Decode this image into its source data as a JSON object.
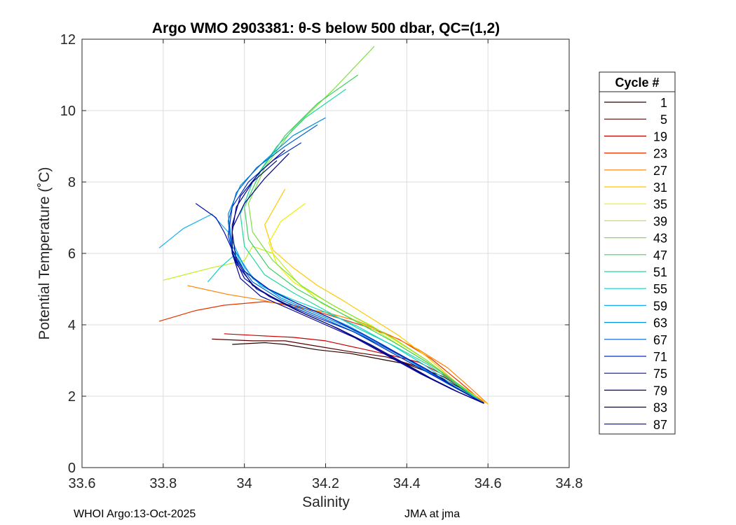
{
  "chart_data": {
    "type": "line",
    "title": "Argo WMO 2903381: θ-S below 500 dbar,  QC=(1,2)",
    "xlabel": "Salinity",
    "ylabel": "Potential Temperature (˚C)",
    "xlim": [
      33.6,
      34.8
    ],
    "ylim": [
      0,
      12
    ],
    "x_ticks": [
      "33.6",
      "33.8",
      "34",
      "34.2",
      "34.4",
      "34.6",
      "34.8"
    ],
    "y_ticks": [
      "0",
      "2",
      "4",
      "6",
      "8",
      "10",
      "12"
    ],
    "grid": true,
    "legend_title": "Cycle #",
    "legend_position": "right",
    "colormap": "jet",
    "series": [
      {
        "name": "1",
        "color": "#2a0000",
        "salinity": [
          33.97,
          34.05,
          34.1,
          34.18,
          34.26,
          34.33,
          34.4,
          34.47,
          34.53,
          34.59
        ],
        "theta": [
          3.45,
          3.5,
          3.45,
          3.3,
          3.2,
          3.05,
          2.9,
          2.6,
          2.25,
          1.8
        ]
      },
      {
        "name": "5",
        "color": "#5a0000",
        "salinity": [
          33.92,
          34.02,
          34.1,
          34.18,
          34.26,
          34.35,
          34.42,
          34.49,
          34.54,
          34.59
        ],
        "theta": [
          3.6,
          3.55,
          3.55,
          3.4,
          3.25,
          3.1,
          2.85,
          2.55,
          2.2,
          1.82
        ]
      },
      {
        "name": "19",
        "color": "#c80000",
        "salinity": [
          33.95,
          34.03,
          34.12,
          34.2,
          34.28,
          34.36,
          34.43,
          34.49,
          34.54,
          34.59
        ],
        "theta": [
          3.75,
          3.7,
          3.65,
          3.55,
          3.35,
          3.15,
          2.95,
          2.6,
          2.2,
          1.8
        ]
      },
      {
        "name": "23",
        "color": "#e83300",
        "salinity": [
          33.79,
          33.88,
          33.95,
          34.05,
          34.12,
          34.2,
          34.3,
          34.38,
          34.46,
          34.53,
          34.59
        ],
        "theta": [
          4.1,
          4.4,
          4.55,
          4.65,
          4.55,
          4.3,
          3.95,
          3.6,
          3.05,
          2.4,
          1.82
        ]
      },
      {
        "name": "27",
        "color": "#ff8000",
        "salinity": [
          33.86,
          33.96,
          34.04,
          34.12,
          34.2,
          34.28,
          34.36,
          34.43,
          34.5,
          34.55,
          34.6
        ],
        "theta": [
          5.1,
          4.85,
          4.7,
          4.5,
          4.35,
          4.1,
          3.7,
          3.3,
          2.8,
          2.3,
          1.78
        ]
      },
      {
        "name": "31",
        "color": "#ffc800",
        "salinity": [
          34.1,
          34.05,
          34.07,
          34.12,
          34.18,
          34.24,
          34.31,
          34.38,
          34.45,
          34.52,
          34.6
        ],
        "theta": [
          7.8,
          6.8,
          6.1,
          5.6,
          5.1,
          4.7,
          4.2,
          3.7,
          3.1,
          2.4,
          1.78
        ]
      },
      {
        "name": "35",
        "color": "#f0f000",
        "salinity": [
          34.15,
          34.09,
          34.06,
          34.08,
          34.12,
          34.18,
          34.24,
          34.31,
          34.38,
          34.45,
          34.52,
          34.59
        ],
        "theta": [
          7.4,
          6.9,
          6.3,
          5.7,
          5.2,
          4.8,
          4.4,
          4.0,
          3.5,
          3.0,
          2.4,
          1.8
        ]
      },
      {
        "name": "39",
        "color": "#c0f020",
        "salinity": [
          33.8,
          33.92,
          34.0,
          34.02,
          34.07,
          34.13,
          34.19,
          34.26,
          34.33,
          34.4,
          34.47,
          34.53,
          34.59
        ],
        "theta": [
          5.25,
          5.6,
          5.8,
          6.2,
          6.0,
          5.2,
          4.6,
          4.2,
          3.8,
          3.3,
          2.8,
          2.3,
          1.8
        ]
      },
      {
        "name": "43",
        "color": "#80e040",
        "salinity": [
          34.32,
          34.22,
          34.12,
          34.05,
          34.01,
          34.02,
          34.07,
          34.14,
          34.21,
          34.29,
          34.37,
          34.45,
          34.52,
          34.59
        ],
        "theta": [
          11.8,
          10.6,
          9.5,
          8.4,
          7.4,
          6.6,
          5.8,
          5.1,
          4.6,
          4.1,
          3.6,
          3.0,
          2.4,
          1.8
        ]
      },
      {
        "name": "47",
        "color": "#40d060",
        "salinity": [
          34.28,
          34.18,
          34.1,
          34.04,
          34.0,
          34.01,
          34.06,
          34.13,
          34.21,
          34.29,
          34.37,
          34.45,
          34.52,
          34.59
        ],
        "theta": [
          11.0,
          10.2,
          9.3,
          8.3,
          7.3,
          6.4,
          5.6,
          5.0,
          4.5,
          4.0,
          3.5,
          2.95,
          2.4,
          1.8
        ]
      },
      {
        "name": "51",
        "color": "#20d8a0",
        "salinity": [
          34.25,
          34.15,
          34.08,
          34.02,
          33.99,
          34.0,
          34.05,
          34.12,
          34.2,
          34.28,
          34.37,
          34.45,
          34.52,
          34.59
        ],
        "theta": [
          10.6,
          9.8,
          9.0,
          8.0,
          7.1,
          6.2,
          5.4,
          4.9,
          4.4,
          3.9,
          3.4,
          2.9,
          2.35,
          1.8
        ]
      },
      {
        "name": "55",
        "color": "#10d0d0",
        "salinity": [
          33.91,
          33.94,
          33.98,
          34.0,
          34.06,
          34.12,
          34.2,
          34.28,
          34.36,
          34.44,
          34.51,
          34.59
        ],
        "theta": [
          5.2,
          5.6,
          6.0,
          5.5,
          5.0,
          4.7,
          4.35,
          3.95,
          3.45,
          2.9,
          2.35,
          1.8
        ]
      },
      {
        "name": "59",
        "color": "#10b0f0",
        "salinity": [
          33.79,
          33.85,
          33.92,
          33.96,
          33.98,
          34.0,
          34.04,
          34.1,
          34.18,
          34.26,
          34.34,
          34.42,
          34.5,
          34.59
        ],
        "theta": [
          6.15,
          6.7,
          7.1,
          6.6,
          6.1,
          5.6,
          5.1,
          4.75,
          4.35,
          3.95,
          3.45,
          2.9,
          2.35,
          1.8
        ]
      },
      {
        "name": "63",
        "color": "#0090e0",
        "salinity": [
          34.2,
          34.12,
          34.05,
          33.99,
          33.96,
          33.97,
          34.02,
          34.09,
          34.17,
          34.26,
          34.34,
          34.43,
          34.51,
          34.59
        ],
        "theta": [
          9.8,
          9.3,
          8.6,
          7.9,
          7.1,
          6.2,
          5.3,
          4.75,
          4.35,
          3.9,
          3.4,
          2.85,
          2.3,
          1.8
        ]
      },
      {
        "name": "67",
        "color": "#0060d0",
        "salinity": [
          34.18,
          34.1,
          34.03,
          33.98,
          33.96,
          33.97,
          34.02,
          34.09,
          34.17,
          34.26,
          34.35,
          34.43,
          34.51,
          34.59
        ],
        "theta": [
          9.6,
          9.0,
          8.4,
          7.7,
          6.9,
          6.0,
          5.2,
          4.7,
          4.3,
          3.85,
          3.35,
          2.85,
          2.3,
          1.8
        ]
      },
      {
        "name": "71",
        "color": "#0030c0",
        "salinity": [
          34.14,
          34.07,
          34.01,
          33.97,
          33.96,
          33.98,
          34.03,
          34.1,
          34.18,
          34.27,
          34.35,
          34.43,
          34.51,
          34.59
        ],
        "theta": [
          9.1,
          8.6,
          8.0,
          7.3,
          6.5,
          5.7,
          5.0,
          4.6,
          4.2,
          3.8,
          3.3,
          2.8,
          2.3,
          1.8
        ]
      },
      {
        "name": "75",
        "color": "#0010b0",
        "salinity": [
          33.88,
          33.93,
          33.95,
          33.97,
          34.0,
          34.06,
          34.13,
          34.21,
          34.29,
          34.37,
          34.45,
          34.52,
          34.59
        ],
        "theta": [
          7.4,
          7.0,
          6.6,
          6.1,
          5.5,
          5.0,
          4.6,
          4.2,
          3.75,
          3.25,
          2.75,
          2.25,
          1.8
        ]
      },
      {
        "name": "79",
        "color": "#0000a0",
        "salinity": [
          34.1,
          34.04,
          33.99,
          33.97,
          33.97,
          34.0,
          34.06,
          34.13,
          34.21,
          34.29,
          34.37,
          34.45,
          34.52,
          34.59
        ],
        "theta": [
          8.9,
          8.3,
          7.6,
          6.8,
          6.0,
          5.3,
          4.8,
          4.4,
          4.0,
          3.55,
          3.05,
          2.55,
          2.15,
          1.8
        ]
      },
      {
        "name": "83",
        "color": "#000080",
        "salinity": [
          34.08,
          34.02,
          33.98,
          33.97,
          33.98,
          34.02,
          34.08,
          34.15,
          34.23,
          34.31,
          34.39,
          34.46,
          34.53,
          34.59
        ],
        "theta": [
          8.6,
          8.0,
          7.3,
          6.6,
          5.8,
          5.1,
          4.7,
          4.3,
          3.9,
          3.45,
          2.95,
          2.5,
          2.1,
          1.8
        ]
      },
      {
        "name": "87",
        "color": "#000090",
        "salinity": [
          34.11,
          34.05,
          34.0,
          33.97,
          33.97,
          33.99,
          34.04,
          34.11,
          34.19,
          34.27,
          34.35,
          34.43,
          34.51,
          34.59
        ],
        "theta": [
          8.8,
          8.1,
          7.4,
          6.7,
          6.0,
          5.3,
          4.8,
          4.45,
          4.05,
          3.65,
          3.15,
          2.65,
          2.2,
          1.8
        ]
      }
    ]
  },
  "footer": {
    "left": "WHOI Argo:13-Oct-2025",
    "right": "JMA at jma"
  }
}
